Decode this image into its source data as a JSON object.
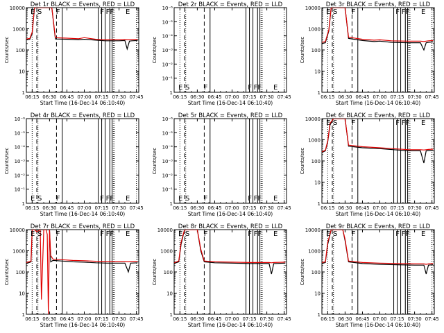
{
  "figure": {
    "ylabel": "Counts/sec",
    "xlabel": "Start Time (16-Dec-14 06:10:40)",
    "x_ticks": [
      "06:15",
      "06:30",
      "06:45",
      "07:00",
      "07:15",
      "07:30",
      "07:45"
    ],
    "colors": {
      "events": "#000000",
      "lld": "#e00000"
    }
  },
  "chart_data": [
    {
      "type": "line",
      "title": "Det 1r BLACK = Events, RED = LLD",
      "scale": "log",
      "ylim": [
        1,
        10000
      ],
      "y_ticks": [
        "1",
        "10",
        "100",
        "1000",
        "10000"
      ],
      "letters": [
        [
          "E",
          "06:13"
        ],
        [
          "S",
          "06:19"
        ],
        [
          "F",
          "06:35"
        ],
        [
          "F",
          "07:13"
        ],
        [
          "FF",
          "07:18"
        ],
        [
          "E",
          "07:35"
        ]
      ],
      "series": [
        {
          "name": "Events",
          "color": "#000000",
          "x": [
            "06:10",
            "06:13",
            "06:15",
            "06:17",
            "06:20",
            "06:32",
            "06:35",
            "06:45",
            "06:55",
            "07:00",
            "07:10",
            "07:18",
            "07:25",
            "07:30",
            "07:35",
            "07:37",
            "07:39",
            "07:41",
            "07:46"
          ],
          "y": [
            300,
            320,
            600,
            10000,
            10000,
            10000,
            330,
            320,
            300,
            320,
            290,
            270,
            270,
            270,
            280,
            110,
            260,
            270,
            280
          ]
        },
        {
          "name": "LLD",
          "color": "#e00000",
          "x": [
            "06:10",
            "06:13",
            "06:15",
            "06:17",
            "06:20",
            "06:32",
            "06:35",
            "06:45",
            "06:55",
            "07:00",
            "07:10",
            "07:18",
            "07:25",
            "07:30",
            "07:35",
            "07:37",
            "07:39",
            "07:41",
            "07:46"
          ],
          "y": [
            330,
            350,
            700,
            10000,
            10000,
            10000,
            380,
            360,
            340,
            380,
            320,
            300,
            300,
            300,
            310,
            300,
            300,
            310,
            320
          ]
        }
      ]
    },
    {
      "type": "line",
      "title": "Det 2r BLACK = Events, RED = LLD",
      "scale": "exp",
      "ylim": [
        1,
        1e-06
      ],
      "y_ticks": [
        "1",
        "10⁻¹",
        "10⁻²",
        "10⁻³",
        "10⁻⁴",
        "10⁻⁵",
        "10⁻⁶"
      ],
      "letters": [
        [
          "E",
          "06:13"
        ],
        [
          "S",
          "06:19"
        ],
        [
          "F",
          "06:35"
        ],
        [
          "F",
          "07:13"
        ],
        [
          "FF",
          "07:18"
        ],
        [
          "E",
          "07:35"
        ]
      ],
      "series": []
    },
    {
      "type": "line",
      "title": "Det 3r BLACK = Events, RED = LLD",
      "scale": "log",
      "ylim": [
        1,
        10000
      ],
      "y_ticks": [
        "1",
        "10",
        "100",
        "1000",
        "10000"
      ],
      "letters": [
        [
          "E",
          "06:13"
        ],
        [
          "S",
          "06:19"
        ],
        [
          "F",
          "06:35"
        ],
        [
          "F",
          "07:13"
        ],
        [
          "FF",
          "07:18"
        ],
        [
          "E",
          "07:35"
        ]
      ],
      "series": [
        {
          "name": "Events",
          "color": "#000000",
          "x": [
            "06:10",
            "06:13",
            "06:16",
            "06:18",
            "06:22",
            "06:30",
            "06:33",
            "06:45",
            "06:55",
            "07:00",
            "07:10",
            "07:25",
            "07:35",
            "07:38",
            "07:40",
            "07:42",
            "07:46"
          ],
          "y": [
            200,
            220,
            800,
            10000,
            10000,
            10000,
            350,
            280,
            250,
            260,
            230,
            220,
            220,
            100,
            220,
            230,
            240
          ]
        },
        {
          "name": "LLD",
          "color": "#e00000",
          "x": [
            "06:10",
            "06:13",
            "06:16",
            "06:18",
            "06:22",
            "06:30",
            "06:33",
            "06:45",
            "06:55",
            "07:00",
            "07:10",
            "07:25",
            "07:35",
            "07:38",
            "07:40",
            "07:42",
            "07:46"
          ],
          "y": [
            230,
            250,
            900,
            10000,
            10000,
            10000,
            400,
            320,
            290,
            300,
            270,
            260,
            260,
            250,
            260,
            270,
            280
          ]
        }
      ]
    },
    {
      "type": "line",
      "title": "Det 4r BLACK = Events, RED = LLD",
      "scale": "exp",
      "ylim": [
        1,
        1e-06
      ],
      "y_ticks": [
        "1",
        "10⁻¹",
        "10⁻²",
        "10⁻³",
        "10⁻⁴",
        "10⁻⁵",
        "10⁻⁶"
      ],
      "letters": [
        [
          "E",
          "06:13"
        ],
        [
          "S",
          "06:19"
        ],
        [
          "F",
          "06:35"
        ],
        [
          "F",
          "07:13"
        ],
        [
          "FF",
          "07:18"
        ],
        [
          "E",
          "07:35"
        ]
      ],
      "series": []
    },
    {
      "type": "line",
      "title": "Det 5r BLACK = Events, RED = LLD",
      "scale": "exp",
      "ylim": [
        1,
        1e-06
      ],
      "y_ticks": [
        "1",
        "10⁻¹",
        "10⁻²",
        "10⁻³",
        "10⁻⁴",
        "10⁻⁵",
        "10⁻⁶"
      ],
      "letters": [
        [
          "E",
          "06:13"
        ],
        [
          "S",
          "06:19"
        ],
        [
          "F",
          "06:35"
        ],
        [
          "F",
          "07:13"
        ],
        [
          "FF",
          "07:18"
        ],
        [
          "E",
          "07:35"
        ]
      ],
      "series": []
    },
    {
      "type": "line",
      "title": "Det 6r BLACK = Events, RED = LLD",
      "scale": "log",
      "ylim": [
        1,
        10000
      ],
      "y_ticks": [
        "1",
        "10",
        "100",
        "1000",
        "10000"
      ],
      "letters": [
        [
          "E",
          "06:13"
        ],
        [
          "S",
          "06:19"
        ],
        [
          "F",
          "06:35"
        ],
        [
          "F",
          "07:13"
        ],
        [
          "FF",
          "07:18"
        ],
        [
          "E",
          "07:35"
        ]
      ],
      "series": [
        {
          "name": "Events",
          "color": "#000000",
          "x": [
            "06:10",
            "06:13",
            "06:15",
            "06:17",
            "06:20",
            "06:30",
            "06:33",
            "06:45",
            "07:00",
            "07:15",
            "07:25",
            "07:35",
            "07:38",
            "07:40",
            "07:42",
            "07:46"
          ],
          "y": [
            250,
            300,
            800,
            5000,
            10000,
            10000,
            500,
            420,
            380,
            330,
            300,
            300,
            80,
            300,
            310,
            320
          ]
        },
        {
          "name": "LLD",
          "color": "#e00000",
          "x": [
            "06:10",
            "06:13",
            "06:15",
            "06:17",
            "06:20",
            "06:30",
            "06:33",
            "06:45",
            "07:00",
            "07:15",
            "07:25",
            "07:35",
            "07:38",
            "07:40",
            "07:42",
            "07:46"
          ],
          "y": [
            270,
            320,
            900,
            6000,
            10000,
            10000,
            560,
            470,
            420,
            370,
            340,
            340,
            330,
            340,
            350,
            360
          ]
        }
      ]
    },
    {
      "type": "line",
      "title": "Det 7r BLACK = Events, RED = LLD",
      "scale": "log",
      "ylim": [
        1,
        10000
      ],
      "y_ticks": [
        "1",
        "10",
        "100",
        "1000",
        "10000"
      ],
      "letters": [
        [
          "E",
          "06:13"
        ],
        [
          "S",
          "06:19"
        ],
        [
          "F",
          "06:35"
        ],
        [
          "F",
          "07:13"
        ],
        [
          "FF",
          "07:18"
        ],
        [
          "E",
          "07:35"
        ]
      ],
      "series": [
        {
          "name": "Events",
          "color": "#000000",
          "x": [
            "06:10",
            "06:14",
            "06:15",
            "06:15.5",
            "06:16",
            "06:30",
            "06:31",
            "06:33",
            "06:40",
            "06:50",
            "07:00",
            "07:10",
            "07:20",
            "07:35",
            "07:38",
            "07:40",
            "07:46"
          ],
          "y": [
            250,
            300,
            10000,
            10000,
            10000,
            10000,
            300,
            350,
            330,
            300,
            290,
            270,
            260,
            260,
            100,
            260,
            270
          ]
        },
        {
          "name": "LLD",
          "color": "#e00000",
          "x": [
            "06:10",
            "06:14",
            "06:15",
            "06:17",
            "06:19",
            "06:22",
            "06:23",
            "06:25",
            "06:27",
            "06:28",
            "06:29",
            "06:30",
            "06:31",
            "06:33",
            "06:40",
            "06:50",
            "07:00",
            "07:10",
            "07:20",
            "07:35",
            "07:38",
            "07:40",
            "07:46"
          ],
          "y": [
            280,
            320,
            10000,
            10000,
            8000,
            10000,
            5,
            10000,
            10000,
            6000,
            1,
            10000,
            600,
            400,
            380,
            350,
            340,
            320,
            310,
            310,
            300,
            310,
            320
          ]
        }
      ]
    },
    {
      "type": "line",
      "title": "Det 8r BLACK = Events, RED = LLD",
      "scale": "log",
      "ylim": [
        1,
        10000
      ],
      "y_ticks": [
        "1",
        "10",
        "100",
        "1000",
        "10000"
      ],
      "letters": [
        [
          "E",
          "06:13"
        ],
        [
          "S",
          "06:19"
        ],
        [
          "F",
          "06:35"
        ],
        [
          "F",
          "07:13"
        ],
        [
          "FF",
          "07:18"
        ],
        [
          "E",
          "07:35"
        ]
      ],
      "series": [
        {
          "name": "Events",
          "color": "#000000",
          "x": [
            "06:10",
            "06:14",
            "06:16",
            "06:19",
            "06:30",
            "06:33",
            "06:36",
            "06:45",
            "07:00",
            "07:15",
            "07:25",
            "07:32",
            "07:34",
            "07:36",
            "07:46"
          ],
          "y": [
            250,
            300,
            2000,
            10000,
            10000,
            1000,
            300,
            270,
            260,
            250,
            250,
            250,
            80,
            250,
            260
          ]
        },
        {
          "name": "LLD",
          "color": "#e00000",
          "x": [
            "06:10",
            "06:14",
            "06:16",
            "06:19",
            "06:30",
            "06:33",
            "06:36",
            "06:45",
            "07:00",
            "07:15",
            "07:25",
            "07:32",
            "07:34",
            "07:36",
            "07:46"
          ],
          "y": [
            270,
            330,
            2500,
            10000,
            10000,
            1200,
            330,
            300,
            290,
            280,
            280,
            280,
            270,
            280,
            290
          ]
        }
      ]
    },
    {
      "type": "line",
      "title": "Det 9r BLACK = Events, RED = LLD",
      "scale": "log",
      "ylim": [
        1,
        10000
      ],
      "y_ticks": [
        "1",
        "10",
        "100",
        "1000",
        "10000"
      ],
      "letters": [
        [
          "E",
          "06:13"
        ],
        [
          "S",
          "06:19"
        ],
        [
          "F",
          "06:35"
        ],
        [
          "F",
          "07:13"
        ],
        [
          "FF",
          "07:18"
        ],
        [
          "E",
          "07:35"
        ]
      ],
      "series": [
        {
          "name": "Events",
          "color": "#000000",
          "x": [
            "06:10",
            "06:13",
            "06:15",
            "06:18",
            "06:28",
            "06:30",
            "06:33",
            "06:45",
            "07:00",
            "07:15",
            "07:30",
            "07:38",
            "07:40",
            "07:42",
            "07:46"
          ],
          "y": [
            250,
            280,
            2000,
            10000,
            10000,
            3000,
            300,
            250,
            230,
            220,
            210,
            210,
            80,
            210,
            220
          ]
        },
        {
          "name": "LLD",
          "color": "#e00000",
          "x": [
            "06:10",
            "06:13",
            "06:15",
            "06:18",
            "06:28",
            "06:30",
            "06:33",
            "06:45",
            "07:00",
            "07:15",
            "07:30",
            "07:38",
            "07:40",
            "07:42",
            "07:46"
          ],
          "y": [
            280,
            300,
            2500,
            10000,
            10000,
            3500,
            330,
            280,
            260,
            250,
            240,
            240,
            230,
            240,
            250
          ]
        }
      ]
    }
  ]
}
